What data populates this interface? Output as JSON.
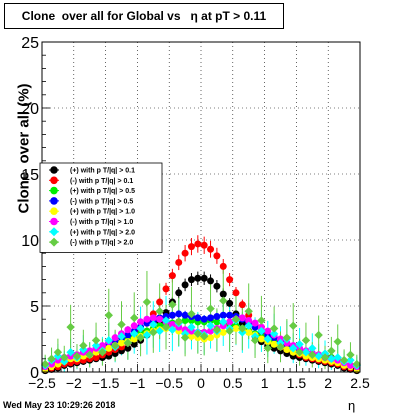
{
  "title": "Clone  over all for Global vs   η at pT > 0.11",
  "ylabel": "Clone  over all (%)",
  "xlabel": "η",
  "footer": "Wed May 23 10:29:26 2018",
  "chart_data": {
    "type": "scatter",
    "title": "Clone  over all for Global vs   η at pT > 0.11",
    "xlabel": "η",
    "ylabel": "Clone  over all (%)",
    "xlim": [
      -2.5,
      2.5
    ],
    "ylim": [
      0,
      25
    ],
    "x_ticks": [
      -2.5,
      -2,
      -1.5,
      -1,
      -0.5,
      0,
      0.5,
      1,
      1.5,
      2,
      2.5
    ],
    "x_tick_labels": [
      "−2.5",
      "−2",
      "−1.5",
      "−1",
      "−0.5",
      "0",
      "0.5",
      "1",
      "1.5",
      "2",
      "2.5"
    ],
    "y_ticks": [
      0,
      5,
      10,
      15,
      20,
      25
    ],
    "y_tick_labels": [
      "0",
      "5",
      "10",
      "15",
      "20",
      "25"
    ],
    "grid": true,
    "legend_position": "left-middle",
    "x": [
      -2.45,
      -2.35,
      -2.25,
      -2.15,
      -2.05,
      -1.95,
      -1.85,
      -1.75,
      -1.65,
      -1.55,
      -1.45,
      -1.35,
      -1.25,
      -1.15,
      -1.05,
      -0.95,
      -0.85,
      -0.75,
      -0.65,
      -0.55,
      -0.45,
      -0.35,
      -0.25,
      -0.15,
      -0.05,
      0.05,
      0.15,
      0.25,
      0.35,
      0.45,
      0.55,
      0.65,
      0.75,
      0.85,
      0.95,
      1.05,
      1.15,
      1.25,
      1.35,
      1.45,
      1.55,
      1.65,
      1.75,
      1.85,
      1.95,
      2.05,
      2.15,
      2.25,
      2.35,
      2.45
    ],
    "series": [
      {
        "name": "(+) with p T/|q| > 0.1",
        "color": "#000000",
        "marker": "circle",
        "values": [
          0.1,
          0.2,
          0.3,
          0.5,
          0.6,
          0.7,
          0.8,
          0.9,
          1.0,
          1.1,
          1.2,
          1.4,
          1.6,
          1.8,
          2.1,
          2.4,
          2.8,
          3.2,
          3.8,
          4.5,
          5.3,
          6.0,
          6.6,
          7.0,
          7.1,
          7.1,
          6.9,
          6.5,
          5.9,
          5.2,
          4.4,
          3.7,
          3.1,
          2.7,
          2.3,
          2.0,
          1.8,
          1.6,
          1.4,
          1.2,
          1.1,
          1.0,
          0.9,
          0.8,
          0.7,
          0.6,
          0.5,
          0.3,
          0.2,
          0.1
        ]
      },
      {
        "name": "(-) with p T/|q| > 0.1",
        "color": "#ff0000",
        "marker": "circle",
        "values": [
          0.2,
          0.3,
          0.4,
          0.6,
          0.7,
          0.8,
          0.9,
          1.0,
          1.1,
          1.3,
          1.5,
          1.7,
          1.9,
          2.2,
          2.6,
          3.1,
          3.7,
          4.4,
          5.3,
          6.3,
          7.3,
          8.3,
          9.0,
          9.5,
          9.7,
          9.6,
          9.3,
          8.8,
          8.0,
          7.0,
          6.0,
          5.1,
          4.3,
          3.6,
          3.0,
          2.6,
          2.2,
          1.9,
          1.7,
          1.5,
          1.3,
          1.1,
          1.0,
          0.9,
          0.8,
          0.7,
          0.6,
          0.4,
          0.3,
          0.2
        ]
      },
      {
        "name": "(+) with p T/|q| > 0.5",
        "color": "#00ee00",
        "marker": "circle",
        "values": [
          0.3,
          0.5,
          0.8,
          1.0,
          1.2,
          1.3,
          1.4,
          1.5,
          1.6,
          1.7,
          1.9,
          2.1,
          2.3,
          2.5,
          2.7,
          2.9,
          3.1,
          3.3,
          3.5,
          3.6,
          3.7,
          3.8,
          3.9,
          3.9,
          3.8,
          3.8,
          3.9,
          3.8,
          3.7,
          3.6,
          3.5,
          3.3,
          3.1,
          2.9,
          2.7,
          2.5,
          2.3,
          2.1,
          1.9,
          1.7,
          1.6,
          1.5,
          1.4,
          1.3,
          1.2,
          1.1,
          0.9,
          0.7,
          0.5,
          0.3
        ]
      },
      {
        "name": "(-) with p T/|q| > 0.5",
        "color": "#0000ff",
        "marker": "circle",
        "values": [
          0.3,
          0.5,
          0.8,
          1.0,
          1.1,
          1.2,
          1.4,
          1.5,
          1.7,
          1.9,
          2.1,
          2.3,
          2.6,
          2.8,
          3.1,
          3.4,
          3.7,
          3.9,
          4.1,
          4.2,
          4.3,
          4.4,
          4.3,
          4.2,
          4.1,
          4.0,
          4.1,
          4.2,
          4.3,
          4.3,
          4.2,
          4.0,
          3.7,
          3.4,
          3.1,
          2.8,
          2.6,
          2.3,
          2.1,
          1.9,
          1.7,
          1.5,
          1.4,
          1.2,
          1.1,
          1.0,
          0.8,
          0.6,
          0.4,
          0.3
        ]
      },
      {
        "name": "(+) with p T/|q| > 1.0",
        "color": "#ffff00",
        "marker": "circle",
        "values": [
          0.2,
          0.4,
          0.6,
          0.8,
          1.0,
          1.0,
          1.2,
          1.3,
          1.5,
          1.6,
          1.8,
          2.0,
          2.2,
          2.3,
          2.5,
          2.7,
          2.9,
          3.1,
          3.2,
          3.3,
          3.3,
          3.1,
          2.9,
          2.7,
          2.6,
          2.5,
          2.6,
          2.8,
          3.0,
          3.2,
          3.3,
          3.2,
          3.0,
          2.8,
          2.5,
          2.3,
          2.1,
          1.9,
          1.7,
          1.5,
          1.4,
          1.2,
          1.1,
          1.0,
          0.9,
          0.8,
          0.7,
          0.5,
          0.4,
          0.2
        ]
      },
      {
        "name": "(-) with p T/|q| > 1.0",
        "color": "#ff00ff",
        "marker": "circle",
        "values": [
          0.4,
          0.6,
          0.9,
          1.1,
          1.2,
          1.3,
          1.5,
          1.6,
          1.8,
          2.0,
          2.3,
          2.6,
          2.9,
          3.2,
          3.5,
          3.8,
          4.0,
          4.1,
          4.0,
          3.8,
          3.6,
          3.4,
          3.2,
          3.1,
          3.0,
          3.0,
          3.1,
          3.3,
          3.5,
          3.8,
          4.0,
          4.1,
          3.9,
          3.7,
          3.4,
          3.1,
          2.8,
          2.5,
          2.2,
          2.0,
          1.8,
          1.6,
          1.4,
          1.3,
          1.1,
          1.0,
          0.9,
          0.7,
          0.5,
          0.4
        ]
      },
      {
        "name": "(+) with p T/|q| > 2.0",
        "color": "#00ffff",
        "marker": "diamond",
        "values": [
          0.5,
          0.9,
          1.2,
          0.8,
          1.5,
          1.1,
          1.7,
          1.3,
          2.0,
          1.6,
          2.4,
          1.9,
          2.7,
          2.2,
          2.9,
          3.3,
          2.8,
          3.6,
          3.1,
          3.9,
          3.2,
          3.7,
          2.9,
          3.4,
          3.0,
          2.8,
          3.5,
          3.1,
          3.8,
          3.3,
          3.9,
          3.0,
          3.5,
          2.7,
          3.1,
          2.5,
          2.9,
          2.2,
          2.5,
          1.8,
          2.1,
          1.5,
          1.8,
          1.2,
          1.4,
          1.0,
          1.1,
          0.8,
          0.9,
          0.5
        ]
      },
      {
        "name": "(-) with p T/|q| > 2.0",
        "color": "#66cc44",
        "marker": "diamond",
        "values": [
          0.6,
          1.0,
          1.5,
          1.1,
          3.4,
          1.2,
          2.0,
          1.3,
          2.4,
          1.5,
          4.3,
          2.0,
          3.6,
          2.2,
          4.1,
          2.6,
          5.3,
          3.0,
          4.6,
          3.4,
          5.1,
          3.8,
          2.6,
          4.4,
          2.9,
          2.7,
          4.8,
          3.2,
          5.4,
          3.1,
          4.0,
          3.3,
          4.6,
          2.4,
          3.9,
          1.8,
          3.3,
          1.9,
          2.6,
          3.5,
          1.5,
          2.4,
          1.3,
          2.8,
          1.1,
          1.6,
          2.3,
          0.9,
          1.3,
          0.6
        ]
      }
    ]
  }
}
